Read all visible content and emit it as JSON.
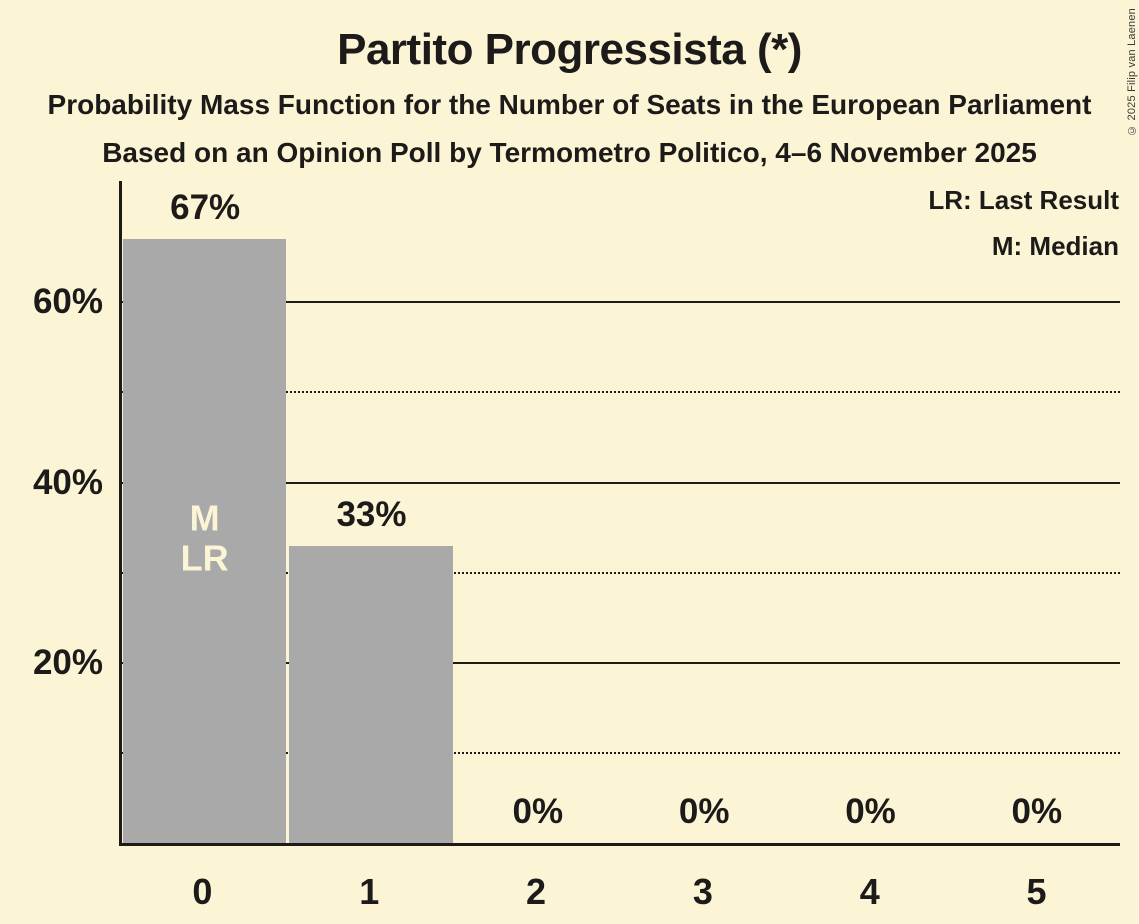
{
  "copyright": "© 2025 Filip van Laenen",
  "colors": {
    "background": "#fbf5d6",
    "bar": "#a9a9a9",
    "text": "#1c1b1a",
    "bar_annotation_text": "#fbf5d6"
  },
  "chart_data": {
    "type": "bar",
    "title": "Partito Progressista (*)",
    "subtitle": "Probability Mass Function for the Number of Seats in the European Parliament",
    "source_line": "Based on an Opinion Poll by Termometro Politico, 4–6 November 2025",
    "legend": [
      "LR: Last Result",
      "M: Median"
    ],
    "categories": [
      "0",
      "1",
      "2",
      "3",
      "4",
      "5"
    ],
    "values": [
      67,
      33,
      0,
      0,
      0,
      0
    ],
    "value_labels": [
      "67%",
      "33%",
      "0%",
      "0%",
      "0%",
      "0%"
    ],
    "bar_annotations": [
      [
        "M",
        "LR"
      ],
      [],
      [],
      [],
      [],
      []
    ],
    "median_category": "0",
    "last_result_category": "0",
    "xlabel": "",
    "ylabel": "",
    "ylim": [
      0,
      73.8
    ],
    "y_gridlines": [
      {
        "v": 10,
        "style": "dotted",
        "label": ""
      },
      {
        "v": 20,
        "style": "solid",
        "label": "20%"
      },
      {
        "v": 30,
        "style": "dotted",
        "label": ""
      },
      {
        "v": 40,
        "style": "solid",
        "label": "40%"
      },
      {
        "v": 50,
        "style": "dotted",
        "label": ""
      },
      {
        "v": 60,
        "style": "solid",
        "label": "60%"
      }
    ],
    "legend_position": "top-right",
    "grid": true
  }
}
